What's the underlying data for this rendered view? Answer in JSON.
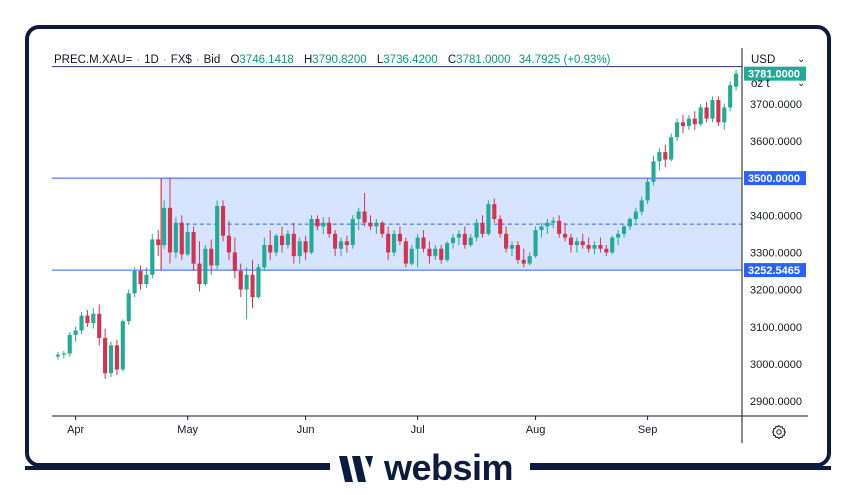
{
  "header": {
    "symbol": "PREC.M.XAU=",
    "interval": "1D",
    "source": "FX$",
    "price_type": "Bid",
    "open_label": "O",
    "open": "3746.1418",
    "high_label": "H",
    "high": "3790.8200",
    "low_label": "L",
    "low": "3736.4200",
    "close_label": "C",
    "close": "3781.0000",
    "change": "34.7925 (+0.93%)"
  },
  "currency": "USD",
  "unit": "oz t",
  "brand": {
    "name": "websim"
  },
  "colors": {
    "up": "#22ab94",
    "down": "#d6324f",
    "zone": "#d6e4ff",
    "line": "#2962ff",
    "frame": "#0d1b3e"
  },
  "icons": {
    "settings": "gear-icon",
    "currency-dropdown": "chevron-down-icon",
    "unit-dropdown": "chevron-down-icon"
  },
  "chart_data": {
    "type": "candlestick",
    "y_axis": {
      "min": 2860,
      "max": 3850,
      "ticks": [
        "2900.0000",
        "3000.0000",
        "3100.0000",
        "3200.0000",
        "3300.0000",
        "3400.0000",
        "3500.0000",
        "3600.0000",
        "3700.0000"
      ]
    },
    "x_axis": {
      "tick_labels": [
        "Apr",
        "May",
        "Jun",
        "Jul",
        "Aug",
        "Sep"
      ],
      "tick_index": [
        3,
        22,
        42,
        61,
        81,
        100
      ]
    },
    "price_labels": [
      {
        "value": 3781,
        "text": "3781.0000",
        "style": "close"
      },
      {
        "value": 3500,
        "text": "3500.0000",
        "style": "level"
      },
      {
        "value": 3252.5465,
        "text": "3252.5465",
        "style": "level"
      }
    ],
    "zone": {
      "top": 3500,
      "bottom": 3252.5465,
      "mid": 3376.27,
      "start_index": 18
    },
    "top_line": 3800,
    "candles": [
      [
        3020,
        3032,
        3012,
        3025
      ],
      [
        3025,
        3035,
        3015,
        3028
      ],
      [
        3028,
        3085,
        3020,
        3078
      ],
      [
        3078,
        3100,
        3060,
        3090
      ],
      [
        3090,
        3140,
        3080,
        3130
      ],
      [
        3130,
        3145,
        3100,
        3110
      ],
      [
        3110,
        3150,
        3095,
        3135
      ],
      [
        3135,
        3160,
        3050,
        3070
      ],
      [
        3070,
        3095,
        2960,
        2975
      ],
      [
        2975,
        3060,
        2965,
        3050
      ],
      [
        3050,
        3065,
        2970,
        2985
      ],
      [
        2985,
        3120,
        2980,
        3115
      ],
      [
        3115,
        3200,
        3105,
        3190
      ],
      [
        3190,
        3260,
        3180,
        3250
      ],
      [
        3250,
        3265,
        3200,
        3215
      ],
      [
        3215,
        3260,
        3205,
        3240
      ],
      [
        3240,
        3350,
        3230,
        3335
      ],
      [
        3335,
        3360,
        3290,
        3320
      ],
      [
        3320,
        3440,
        3310,
        3420
      ],
      [
        3420,
        3500,
        3270,
        3300
      ],
      [
        3300,
        3395,
        3285,
        3380
      ],
      [
        3380,
        3400,
        3280,
        3295
      ],
      [
        3295,
        3380,
        3290,
        3355
      ],
      [
        3355,
        3370,
        3250,
        3270
      ],
      [
        3270,
        3330,
        3195,
        3215
      ],
      [
        3215,
        3320,
        3210,
        3310
      ],
      [
        3310,
        3335,
        3240,
        3265
      ],
      [
        3265,
        3440,
        3255,
        3425
      ],
      [
        3425,
        3440,
        3330,
        3345
      ],
      [
        3345,
        3385,
        3280,
        3300
      ],
      [
        3300,
        3340,
        3230,
        3250
      ],
      [
        3250,
        3270,
        3180,
        3200
      ],
      [
        3200,
        3260,
        3120,
        3240
      ],
      [
        3240,
        3280,
        3150,
        3180
      ],
      [
        3180,
        3270,
        3175,
        3260
      ],
      [
        3260,
        3340,
        3250,
        3320
      ],
      [
        3320,
        3360,
        3280,
        3300
      ],
      [
        3300,
        3350,
        3290,
        3345
      ],
      [
        3345,
        3370,
        3300,
        3320
      ],
      [
        3320,
        3360,
        3310,
        3350
      ],
      [
        3350,
        3380,
        3270,
        3290
      ],
      [
        3290,
        3340,
        3270,
        3330
      ],
      [
        3330,
        3345,
        3280,
        3300
      ],
      [
        3300,
        3400,
        3295,
        3390
      ],
      [
        3390,
        3400,
        3360,
        3370
      ],
      [
        3370,
        3395,
        3350,
        3380
      ],
      [
        3380,
        3395,
        3340,
        3350
      ],
      [
        3350,
        3360,
        3290,
        3310
      ],
      [
        3310,
        3340,
        3290,
        3330
      ],
      [
        3330,
        3345,
        3300,
        3320
      ],
      [
        3320,
        3400,
        3310,
        3390
      ],
      [
        3390,
        3420,
        3360,
        3410
      ],
      [
        3410,
        3460,
        3370,
        3380
      ],
      [
        3380,
        3400,
        3360,
        3370
      ],
      [
        3370,
        3390,
        3350,
        3380
      ],
      [
        3380,
        3385,
        3340,
        3350
      ],
      [
        3350,
        3370,
        3280,
        3300
      ],
      [
        3300,
        3360,
        3290,
        3350
      ],
      [
        3350,
        3370,
        3320,
        3330
      ],
      [
        3330,
        3340,
        3260,
        3270
      ],
      [
        3270,
        3320,
        3265,
        3310
      ],
      [
        3310,
        3350,
        3260,
        3340
      ],
      [
        3340,
        3360,
        3300,
        3310
      ],
      [
        3310,
        3330,
        3270,
        3290
      ],
      [
        3290,
        3320,
        3280,
        3310
      ],
      [
        3310,
        3320,
        3270,
        3280
      ],
      [
        3280,
        3330,
        3275,
        3325
      ],
      [
        3325,
        3350,
        3310,
        3340
      ],
      [
        3340,
        3360,
        3320,
        3350
      ],
      [
        3350,
        3370,
        3310,
        3320
      ],
      [
        3320,
        3350,
        3315,
        3340
      ],
      [
        3340,
        3390,
        3330,
        3380
      ],
      [
        3380,
        3400,
        3340,
        3350
      ],
      [
        3350,
        3440,
        3345,
        3430
      ],
      [
        3430,
        3445,
        3380,
        3390
      ],
      [
        3390,
        3400,
        3340,
        3350
      ],
      [
        3350,
        3370,
        3300,
        3310
      ],
      [
        3310,
        3330,
        3290,
        3320
      ],
      [
        3320,
        3330,
        3270,
        3280
      ],
      [
        3280,
        3310,
        3260,
        3270
      ],
      [
        3270,
        3300,
        3265,
        3290
      ],
      [
        3290,
        3370,
        3285,
        3360
      ],
      [
        3360,
        3380,
        3340,
        3370
      ],
      [
        3370,
        3390,
        3350,
        3380
      ],
      [
        3380,
        3395,
        3365,
        3385
      ],
      [
        3385,
        3400,
        3340,
        3350
      ],
      [
        3350,
        3380,
        3330,
        3340
      ],
      [
        3340,
        3350,
        3300,
        3320
      ],
      [
        3320,
        3340,
        3300,
        3330
      ],
      [
        3330,
        3350,
        3310,
        3320
      ],
      [
        3320,
        3340,
        3300,
        3310
      ],
      [
        3310,
        3330,
        3295,
        3320
      ],
      [
        3320,
        3340,
        3300,
        3310
      ],
      [
        3310,
        3320,
        3290,
        3300
      ],
      [
        3300,
        3345,
        3295,
        3340
      ],
      [
        3340,
        3360,
        3320,
        3350
      ],
      [
        3350,
        3375,
        3340,
        3370
      ],
      [
        3370,
        3395,
        3360,
        3390
      ],
      [
        3390,
        3420,
        3380,
        3410
      ],
      [
        3410,
        3450,
        3400,
        3440
      ],
      [
        3440,
        3500,
        3430,
        3490
      ],
      [
        3490,
        3560,
        3480,
        3545
      ],
      [
        3545,
        3580,
        3520,
        3570
      ],
      [
        3570,
        3590,
        3530,
        3550
      ],
      [
        3550,
        3620,
        3545,
        3610
      ],
      [
        3610,
        3660,
        3600,
        3650
      ],
      [
        3650,
        3670,
        3620,
        3640
      ],
      [
        3640,
        3670,
        3630,
        3660
      ],
      [
        3660,
        3680,
        3630,
        3645
      ],
      [
        3645,
        3700,
        3640,
        3690
      ],
      [
        3690,
        3705,
        3650,
        3660
      ],
      [
        3660,
        3720,
        3650,
        3710
      ],
      [
        3710,
        3720,
        3640,
        3650
      ],
      [
        3650,
        3700,
        3630,
        3690
      ],
      [
        3690,
        3760,
        3680,
        3750
      ],
      [
        3746,
        3791,
        3736,
        3781
      ]
    ]
  }
}
